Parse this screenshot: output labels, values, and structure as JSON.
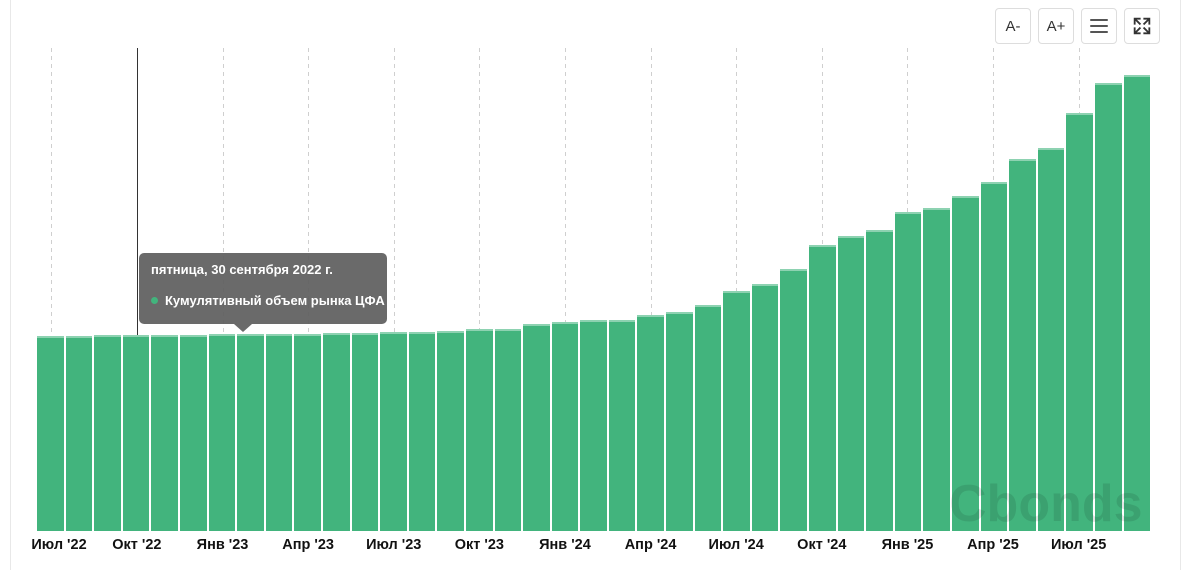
{
  "toolbar": {
    "decrease_font_label": "A-",
    "increase_font_label": "A+"
  },
  "tooltip": {
    "date_line": "пятница, 30 сентября 2022 г.",
    "series_label": "Кумулятивный объем рынка ЦФА"
  },
  "watermark_text": "Cbonds",
  "colors": {
    "bar": "#42b47d",
    "marker": "#42b47d",
    "tooltip_text": "#ffffff",
    "gridline": "#cfcfcf",
    "crosshair": "#333333",
    "axis_label": "#111111",
    "card_border": "#e8e8e8",
    "button_border": "#dddddd",
    "button_text": "#333333"
  },
  "chart_data": {
    "type": "bar",
    "title": "",
    "xlabel": "",
    "ylabel": "",
    "y_axis_visible": false,
    "grid": "vertical-dashed",
    "legend_position": "none",
    "series_name": "Кумулятивный объем рынка ЦФА",
    "months": [
      "2022-06",
      "2022-07",
      "2022-08",
      "2022-09",
      "2022-10",
      "2022-11",
      "2022-12",
      "2023-01",
      "2023-02",
      "2023-03",
      "2023-04",
      "2023-05",
      "2023-06",
      "2023-07",
      "2023-08",
      "2023-09",
      "2023-10",
      "2023-11",
      "2023-12",
      "2024-01",
      "2024-02",
      "2024-03",
      "2024-04",
      "2024-05",
      "2024-06",
      "2024-07",
      "2024-08",
      "2024-09",
      "2024-10",
      "2024-11",
      "2024-12",
      "2025-01",
      "2025-02",
      "2025-03",
      "2025-04",
      "2025-05",
      "2025-06",
      "2025-07",
      "2025-08"
    ],
    "bar_height_pct_of_plot": [
      40.4,
      40.4,
      40.5,
      40.5,
      40.6,
      40.6,
      40.7,
      40.7,
      40.8,
      40.8,
      40.9,
      41.0,
      41.2,
      41.3,
      41.4,
      41.8,
      41.8,
      42.9,
      43.3,
      43.6,
      43.6,
      44.7,
      45.3,
      46.7,
      49.6,
      51.1,
      54.2,
      59.2,
      61.1,
      62.3,
      66.0,
      66.9,
      69.4,
      72.3,
      77.0,
      79.3,
      86.5,
      92.8,
      94.4
    ],
    "x_tick_labels": [
      "Июл '22",
      "Окт '22",
      "Янв '23",
      "Апр '23",
      "Июл '23",
      "Окт '23",
      "Янв '24",
      "Апр '24",
      "Июл '24",
      "Окт '24",
      "Янв '25",
      "Апр '25",
      "Июл '25"
    ],
    "x_tick_bar_index": [
      0,
      3,
      6,
      9,
      12,
      15,
      18,
      21,
      24,
      27,
      30,
      33,
      36
    ],
    "hovered_bar_index": 3,
    "hovered_date": "2022-09-30"
  }
}
